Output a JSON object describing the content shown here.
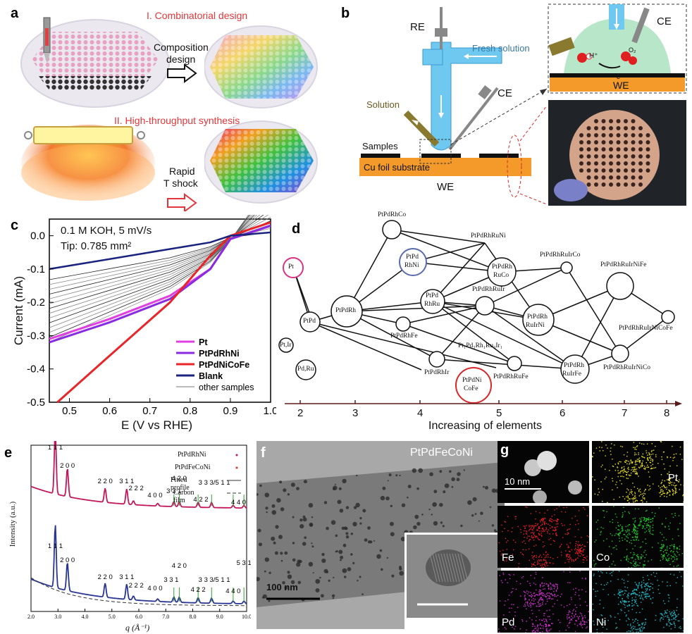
{
  "panel_labels": {
    "a": "a",
    "b": "b",
    "c": "c",
    "d": "d",
    "e": "e",
    "f": "f",
    "g": "g"
  },
  "panel_a": {
    "title1": "I. Combinatorial design",
    "title2": "II. High-throughput synthesis",
    "arrow1_line1": "Composition",
    "arrow1_line2": "design",
    "arrow2_line1": "Rapid",
    "arrow2_line2": "T shock",
    "title_color": "#e2363a"
  },
  "panel_b": {
    "re": "RE",
    "ce": "CE",
    "fresh": "Fresh solution",
    "solution": "Solution",
    "samples": "Samples",
    "substrate": "Cu foil substrate",
    "we": "WE",
    "inset_ce": "CE",
    "inset_we": "WE",
    "h_plus": "H⁺",
    "o2": "O₂",
    "electron": "e⁻"
  },
  "panel_c": {
    "annotation1": "0.1 M KOH, 5 mV/s",
    "annotation2": "Tip: 0.785 mm²"
  },
  "chart_data": [
    {
      "type": "line",
      "panel": "c",
      "xlabel": "E (V vs RHE)",
      "ylabel": "Current (mA)",
      "xlim": [
        0.45,
        1.0
      ],
      "ylim": [
        -0.5,
        0.05
      ],
      "xticks": [
        "0.5",
        "0.6",
        "0.7",
        "0.8",
        "0.9",
        "1.0"
      ],
      "yticks": [
        "-0.5",
        "-0.4",
        "-0.3",
        "-0.2",
        "-0.1",
        "0.0"
      ],
      "legend_placement": "bottom-right",
      "series": [
        {
          "name": "Pt",
          "color": "#e040e0",
          "x": [
            0.45,
            0.6,
            0.75,
            0.85,
            0.9,
            1.0
          ],
          "y": [
            -0.31,
            -0.25,
            -0.18,
            -0.1,
            -0.01,
            0.03
          ]
        },
        {
          "name": "PtPdRhNi",
          "color": "#8a2be2",
          "x": [
            0.45,
            0.6,
            0.75,
            0.85,
            0.9,
            1.0
          ],
          "y": [
            -0.32,
            -0.26,
            -0.19,
            -0.1,
            -0.01,
            0.03
          ]
        },
        {
          "name": "PtPdNiCoFe",
          "color": "#e8262a",
          "x": [
            0.47,
            0.6,
            0.75,
            0.85,
            0.9,
            1.0
          ],
          "y": [
            -0.5,
            -0.36,
            -0.2,
            -0.06,
            0.0,
            0.04
          ]
        },
        {
          "name": "Blank",
          "color": "#1a237e",
          "x": [
            0.45,
            0.6,
            0.75,
            0.85,
            0.9,
            1.0
          ],
          "y": [
            -0.1,
            -0.07,
            -0.04,
            -0.02,
            0.0,
            0.01
          ]
        },
        {
          "name": "other samples",
          "color": "#777777",
          "x": [
            0.45,
            0.6,
            0.75,
            0.85,
            0.9,
            1.0
          ],
          "y": [
            -0.24,
            -0.18,
            -0.12,
            -0.06,
            -0.01,
            0.02
          ]
        }
      ]
    },
    {
      "type": "line",
      "panel": "e",
      "xlabel": "q (Å⁻¹)",
      "ylabel": "Intensity (a.u.)",
      "xlim": [
        2.0,
        10.0
      ],
      "xticks": [
        "2.0",
        "3.0",
        "4.0",
        "5.0",
        "6.0",
        "7.0",
        "8.0",
        "9.0",
        "10.0"
      ],
      "legend_placement": "top-right",
      "series": [
        {
          "name": "PtPdRhNi",
          "color": "#c2185b"
        },
        {
          "name": "PtPdFeCoNi",
          "color": "#283593"
        },
        {
          "name": "Fitted profile",
          "color": "#333333"
        },
        {
          "name": "Carbon film",
          "color": "#333333"
        }
      ],
      "peak_labels_top": [
        "1 1 1",
        "2 0 0",
        "2 2 0",
        "3 1 1",
        "2 2 2",
        "4 0 0",
        "3 3 1",
        "4 2 0",
        "4 2 2",
        "3 3 3/5 1 1",
        "4 4 0"
      ],
      "peak_labels_bottom": [
        "1 1 1",
        "2 0 0",
        "2 2 0",
        "3 1 1",
        "2 2 2",
        "4 0 0",
        "3 3 1",
        "4 2 0",
        "4 2 2",
        "3 3 3/5 1 1",
        "4 4 0",
        "5 3 1"
      ]
    }
  ],
  "panel_d": {
    "xlabel": "Increasing of elements",
    "xticks": [
      "2",
      "3",
      "4",
      "5",
      "6",
      "7",
      "8"
    ],
    "nodes": {
      "pt": "Pt",
      "ptir": "Pt,Ir",
      "pdru": "Pd,Ru",
      "ptpd": "PtPd",
      "ptpdrh": "PtPdRh",
      "ptpdrhco": "PtPdRhCo",
      "ptpdrhni_1": "PtPd",
      "ptpdrhni_2": "RhNi",
      "ptpdrhfe": "PtPdRhFe",
      "ptpdrhir": "PtPdRhIr",
      "ptpdnicofe_1": "PtPdNi",
      "ptpdnicofe_2": "CoFe",
      "ptpdrhru_1": "PtPd",
      "ptpdrhru_2": "RhRu",
      "ptpdrhruni": "PtPdRhRuNi",
      "ptpdrhruco_1": "PtPdRh",
      "ptpdrhruco_2": "RuCo",
      "ptpdrhruir": "PtPdRhRuIr",
      "mixed": "Pt₁Pd₃Rh₁Ru₃Ir₁",
      "ptpdrhrufe": "PtPdRhRuFe",
      "ptpdrhruirco": "PtPdRhRuIrCo",
      "ptpdrhruirni_1": "PtPdRh",
      "ptpdrhruirni_2": "RuIrNi",
      "ptpdrhirfe_1": "PtPdRh",
      "ptpdrhirfe_2": "RuIrFe",
      "ptpdrhruirnife": "PtPdRhRuIrNiFe",
      "ptpdrhruirnico": "PtPdRhRuIrNiCo",
      "ptpdrhruirnicofe": "PtPdRhRuIrNiCoFe"
    },
    "pt_ring_color": "#d63384",
    "rhni_ring_color": "#5b6bb0",
    "nicofe_ring_color": "#d62828"
  },
  "panel_e": {
    "legend1": "PtPdRhNi",
    "legend2": "PtPdFeCoNi",
    "legend3": "Fitted profile",
    "legend4": "Carbon film"
  },
  "panel_f": {
    "sample": "PtPdFeCoNi",
    "scale": "100 nm"
  },
  "panel_g": {
    "scale": "10 nm",
    "maps": [
      {
        "label": "Pt",
        "color": "#e8e020"
      },
      {
        "label": "Fe",
        "color": "#e8202a"
      },
      {
        "label": "Co",
        "color": "#20c828"
      },
      {
        "label": "Pd",
        "color": "#d030d0"
      },
      {
        "label": "Ni",
        "color": "#20b8c8"
      }
    ]
  }
}
